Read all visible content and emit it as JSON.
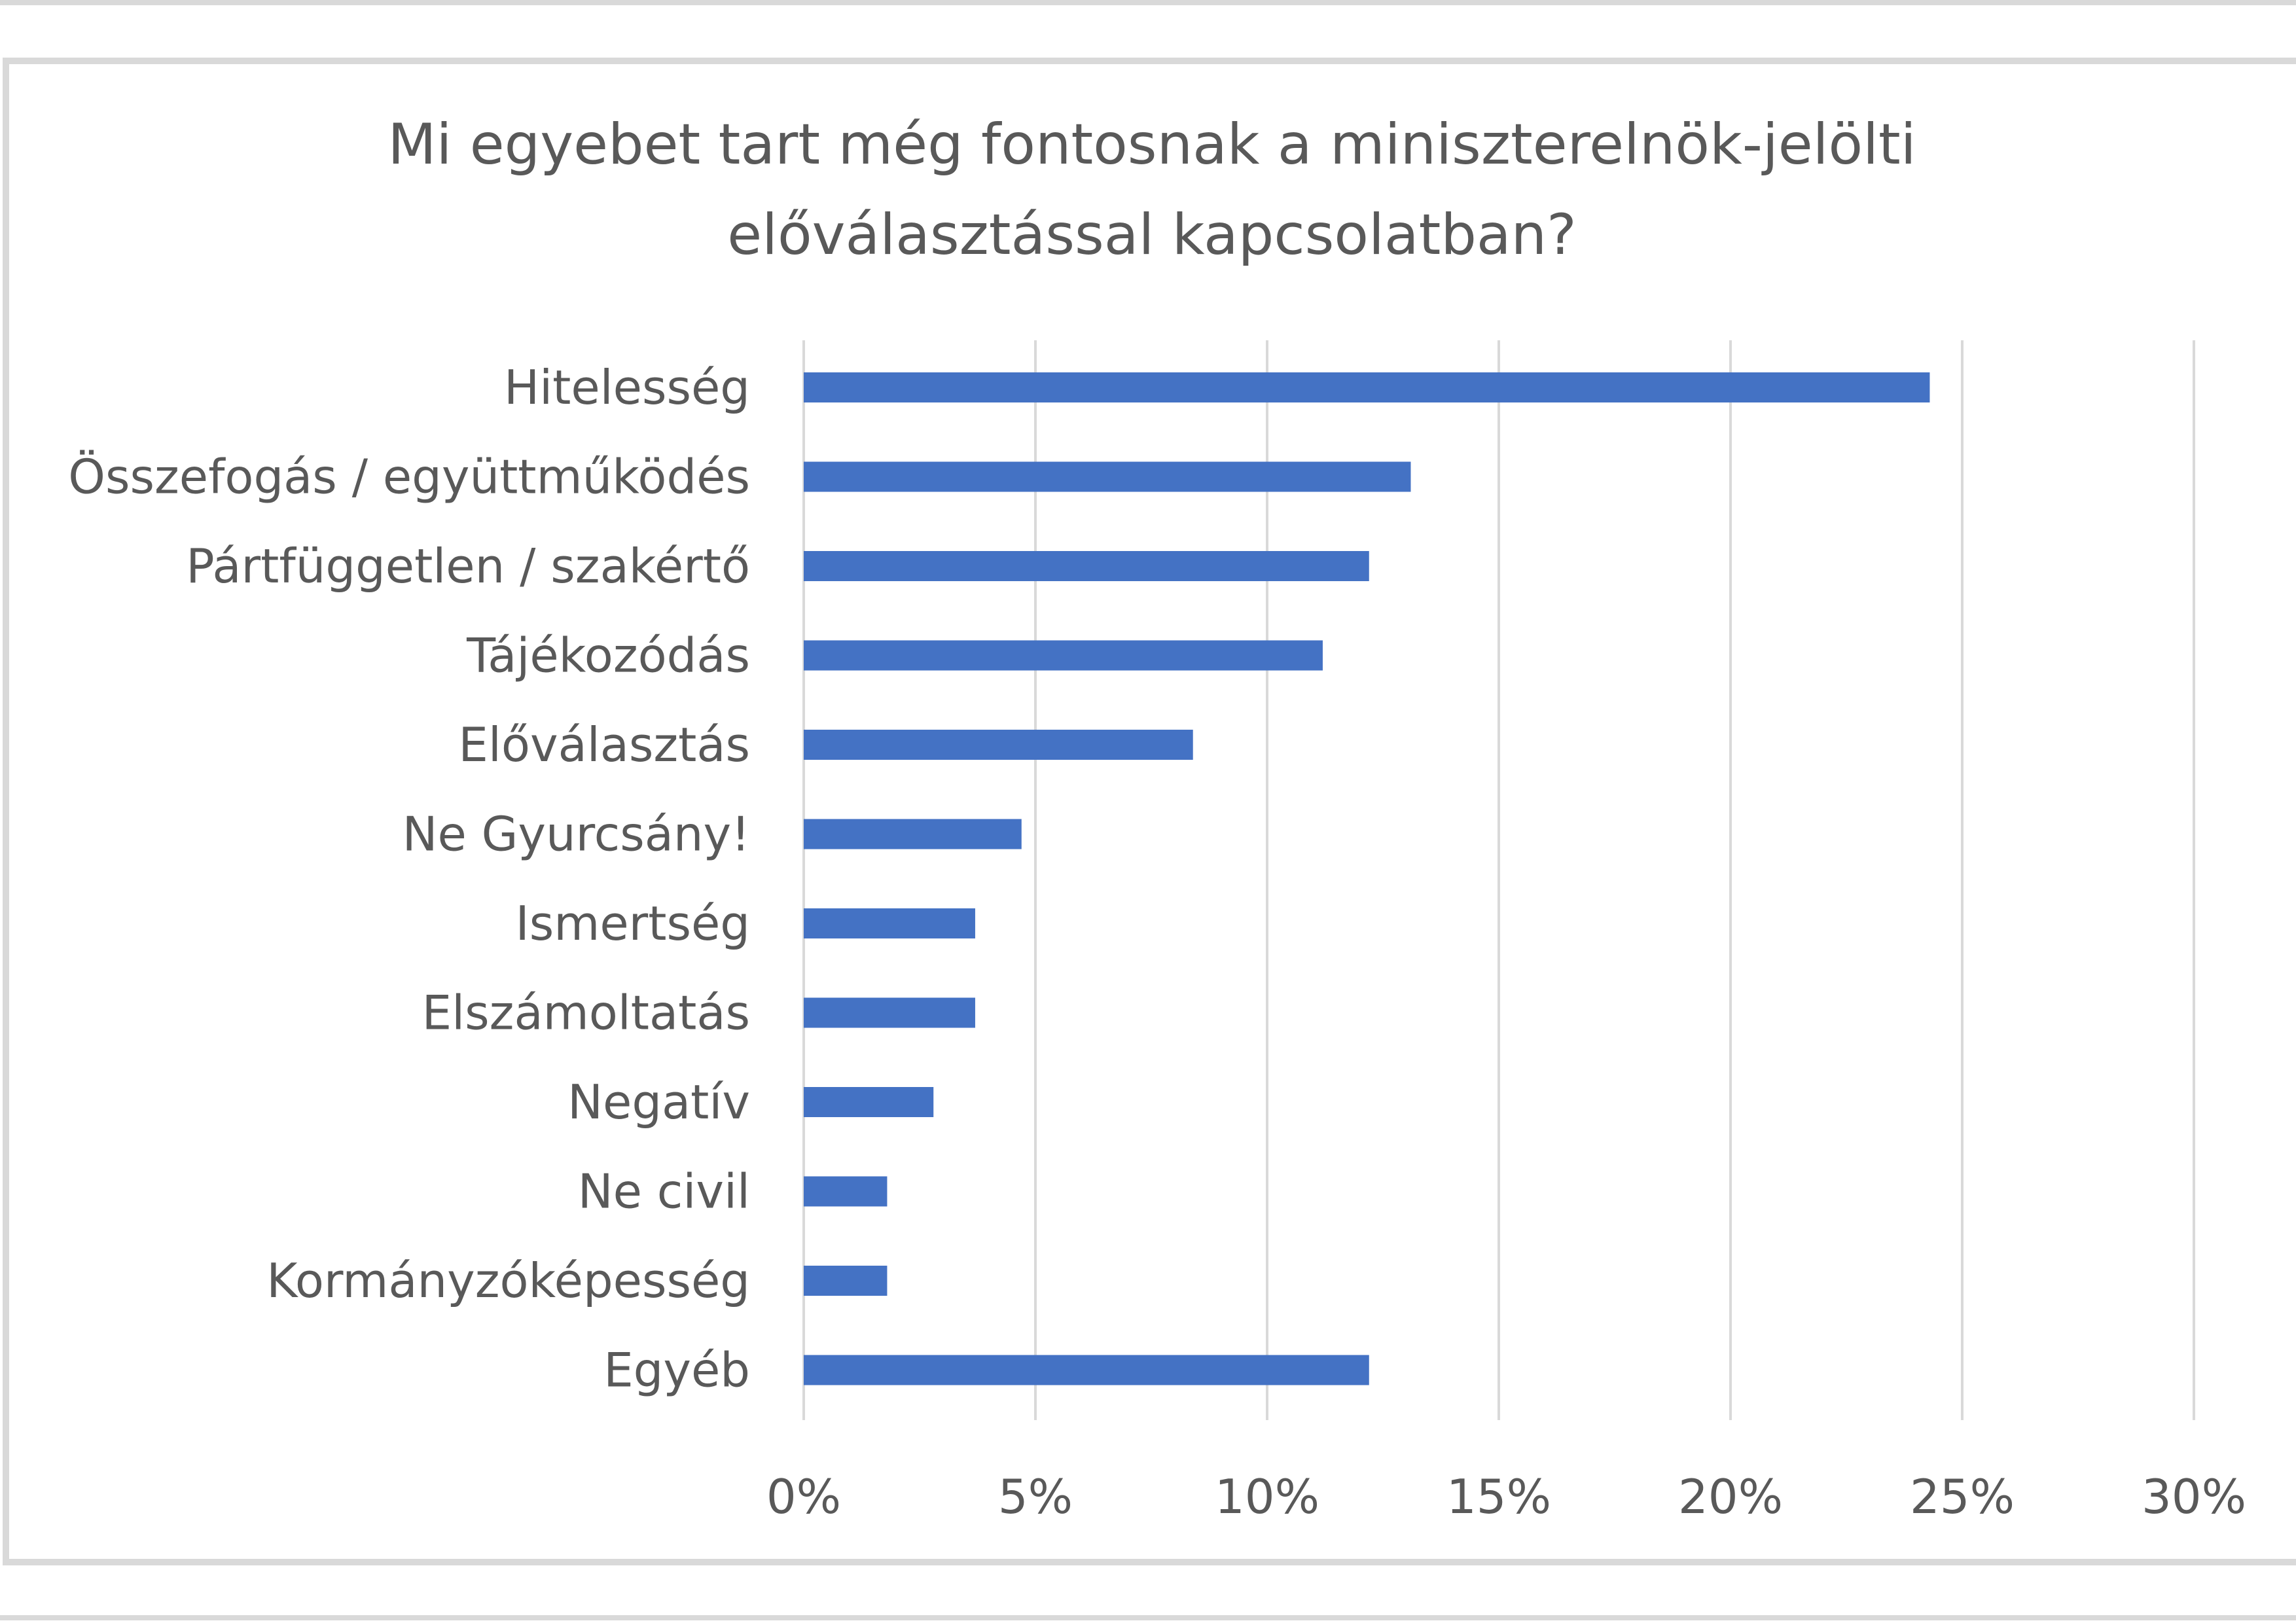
{
  "chart_data": {
    "type": "bar",
    "orientation": "horizontal",
    "title": "Mi egyebet tart még fontosnak a miniszterelnök-jelölti előválasztással kapcsolatban?",
    "title_lines": [
      "Mi egyebet tart még fontosnak a miniszterelnök-jelölti",
      "előválasztással kapcsolatban?"
    ],
    "categories": [
      "Hitelesség",
      "Összefogás / együttműködés",
      "Pártfüggetlen / szakértő",
      "Tájékozódás",
      "Előválasztás",
      "Ne Gyurcsány!",
      "Ismertség",
      "Elszámoltatás",
      "Negatív",
      "Ne civil",
      "Kormányzóképesség",
      "Egyéb"
    ],
    "values": [
      24.3,
      13.1,
      12.2,
      11.2,
      8.4,
      4.7,
      3.7,
      3.7,
      2.8,
      1.8,
      1.8,
      12.2
    ],
    "value_unit": "%",
    "xlim": [
      0,
      30
    ],
    "xticks": [
      "0%",
      "5%",
      "10%",
      "15%",
      "20%",
      "25%",
      "30%"
    ],
    "xlabel": "",
    "ylabel": "",
    "grid": "vertical",
    "legend": "none",
    "bar_color": "#4472c4",
    "grid_color": "#d9d9d9",
    "text_color": "#595959"
  }
}
